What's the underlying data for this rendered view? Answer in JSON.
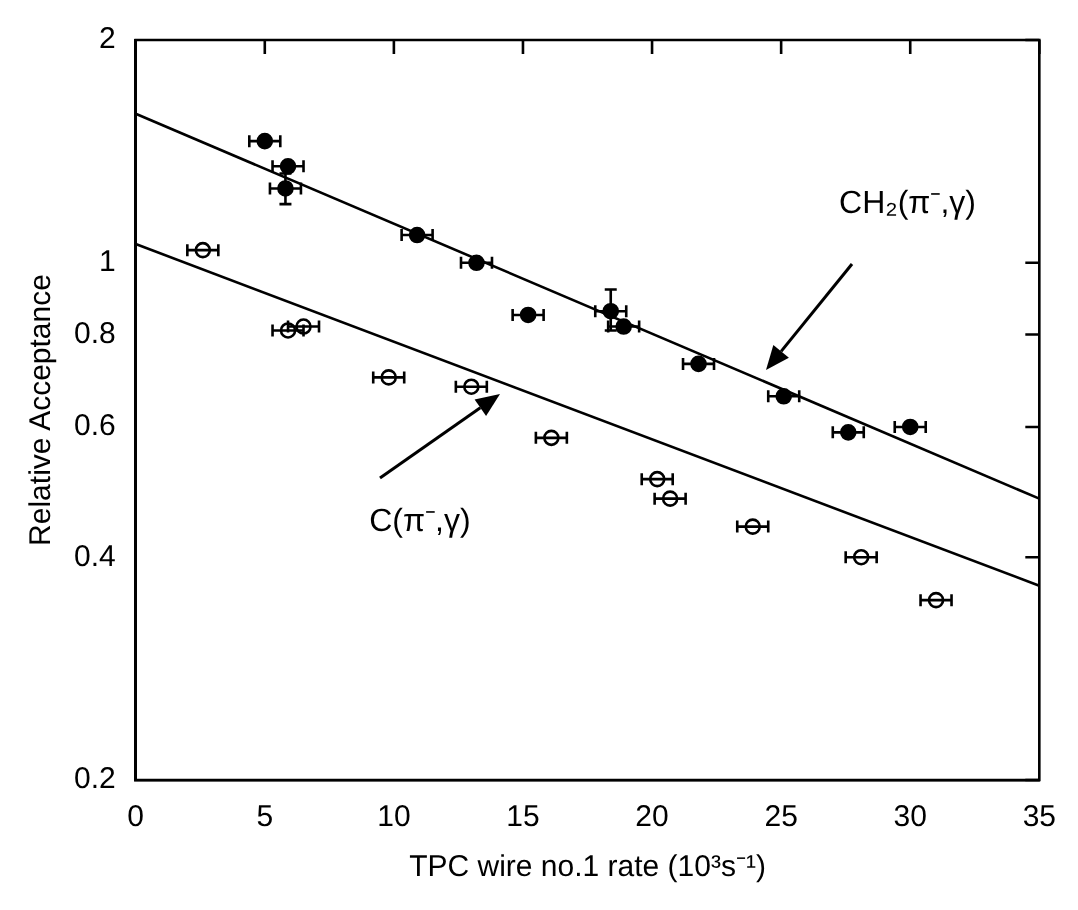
{
  "chart_data": {
    "type": "scatter",
    "xlabel": "TPC wire no.1 rate (10³s⁻¹)",
    "ylabel": "Relative Acceptance",
    "xlim": [
      0,
      35
    ],
    "xticks": [
      0,
      5,
      10,
      15,
      20,
      25,
      30,
      35
    ],
    "ylim": [
      0.2,
      2
    ],
    "yticks": [
      0.2,
      0.4,
      0.6,
      0.8,
      1,
      2
    ],
    "log": "y",
    "grid": false,
    "legend": false,
    "marker": "circle",
    "series": [
      {
        "color": "#000000",
        "x": [
          5.0,
          5.9,
          5.8,
          10.9,
          13.2,
          15.2,
          18.4,
          18.9,
          21.8,
          25.1,
          27.6,
          30.0
        ],
        "values": [
          1.46,
          1.35,
          1.26,
          1.09,
          1.0,
          0.85,
          0.86,
          0.82,
          0.73,
          0.66,
          0.59,
          0.6
        ],
        "xerrors": [
          0.6,
          0.6,
          0.6,
          0.6,
          0.6,
          0.6,
          0.6,
          0.6,
          0.6,
          0.6,
          0.6,
          0.6
        ],
        "errors": [
          null,
          null,
          [
            1.2,
            1.32
          ],
          null,
          null,
          null,
          [
            0.81,
            0.92
          ],
          null,
          null,
          null,
          null,
          null
        ]
      },
      {
        "color": "#000000",
        "x": [
          2.6,
          5.9,
          6.5,
          9.8,
          13.0,
          16.1,
          20.2,
          20.7,
          23.9,
          28.1,
          31.0
        ],
        "values": [
          1.04,
          0.81,
          0.82,
          0.7,
          0.68,
          0.58,
          0.51,
          0.48,
          0.44,
          0.4,
          0.35
        ],
        "xerrors": [
          0.6,
          0.6,
          0.6,
          0.6,
          0.6,
          0.6,
          0.6,
          0.6,
          0.6,
          0.6,
          0.6
        ]
      },
      {
        "type": "line",
        "marker": "none",
        "color": "#000000",
        "x": [
          0,
          35
        ],
        "values": [
          1.59,
          0.48
        ]
      },
      {
        "type": "line",
        "marker": "none",
        "color": "#000000",
        "x": [
          0,
          35
        ],
        "values": [
          1.06,
          0.366
        ]
      }
    ],
    "annotations": [
      "CH₂(π⁻,γ)",
      "C(π⁻,γ)"
    ]
  }
}
